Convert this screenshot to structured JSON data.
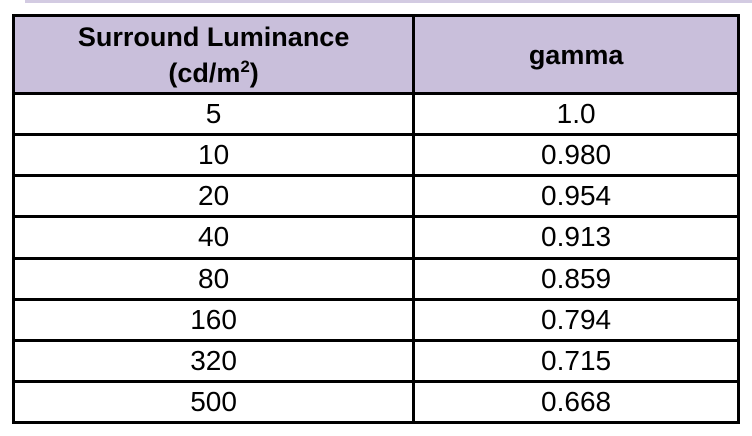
{
  "page": {
    "background_color": "#ffffff",
    "border_color": "#000000",
    "header_background_color": "#c9bfdb"
  },
  "table": {
    "header": {
      "col1_line1": "Surround Luminance",
      "col1_unit_prefix": "(cd/m",
      "col1_unit_sup": "2",
      "col1_unit_suffix": ")",
      "col2": "gamma"
    },
    "rows": [
      {
        "luminance": "5",
        "gamma": "1.0"
      },
      {
        "luminance": "10",
        "gamma": "0.980"
      },
      {
        "luminance": "20",
        "gamma": "0.954"
      },
      {
        "luminance": "40",
        "gamma": "0.913"
      },
      {
        "luminance": "80",
        "gamma": "0.859"
      },
      {
        "luminance": "160",
        "gamma": "0.794"
      },
      {
        "luminance": "320",
        "gamma": "0.715"
      },
      {
        "luminance": "500",
        "gamma": "0.668"
      }
    ]
  }
}
